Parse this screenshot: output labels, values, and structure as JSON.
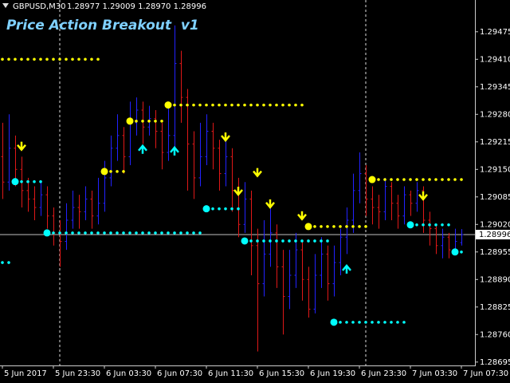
{
  "chart_data": {
    "type": "ohlc",
    "title": "Price Action Breakout  v1",
    "symbol": "GBPUSD,M30",
    "quote": "1.28977 1.29009 1.28970 1.28996",
    "last_price": 1.28996,
    "up_color": "#2222ff",
    "down_color": "#e01818",
    "categories": [
      "5 Jun 2017",
      null,
      null,
      null,
      null,
      null,
      null,
      null,
      "5 Jun 23:30",
      null,
      null,
      null,
      null,
      null,
      null,
      null,
      "6 Jun 03:30",
      null,
      null,
      null,
      null,
      null,
      null,
      null,
      "6 Jun 07:30",
      null,
      null,
      null,
      null,
      null,
      null,
      null,
      "6 Jun 11:30",
      null,
      null,
      null,
      null,
      null,
      null,
      null,
      "6 Jun 15:30",
      null,
      null,
      null,
      null,
      null,
      null,
      null,
      "6 Jun 19:30",
      null,
      null,
      null,
      null,
      null,
      null,
      null,
      "6 Jun 23:30",
      null,
      null,
      null,
      null,
      null,
      null,
      null,
      "7 Jun 03:30",
      null,
      null,
      null,
      null,
      null,
      null,
      null,
      "7 Jun 07:30"
    ],
    "ohlc": [
      [
        1.2918,
        1.2926,
        1.2908,
        1.2912
      ],
      [
        1.2912,
        1.2928,
        1.291,
        1.292
      ],
      [
        1.292,
        1.2923,
        1.2911,
        1.2915
      ],
      [
        1.2915,
        1.2918,
        1.2906,
        1.291
      ],
      [
        1.291,
        1.2913,
        1.2905,
        1.2908
      ],
      [
        1.2908,
        1.2911,
        1.2903,
        1.2906
      ],
      [
        1.2906,
        1.2912,
        1.2904,
        1.2909
      ],
      [
        1.2909,
        1.2911,
        1.2901,
        1.2904
      ],
      [
        1.2904,
        1.2906,
        1.2897,
        1.29
      ],
      [
        1.29,
        1.2903,
        1.2892,
        1.2898
      ],
      [
        1.2898,
        1.2907,
        1.2896,
        1.2903
      ],
      [
        1.2903,
        1.291,
        1.2901,
        1.2906
      ],
      [
        1.2906,
        1.2909,
        1.2901,
        1.2905
      ],
      [
        1.2905,
        1.2911,
        1.2903,
        1.2908
      ],
      [
        1.2908,
        1.291,
        1.2901,
        1.2904
      ],
      [
        1.2904,
        1.2913,
        1.2902,
        1.2907
      ],
      [
        1.2907,
        1.2917,
        1.2905,
        1.2913
      ],
      [
        1.2913,
        1.2923,
        1.2911,
        1.292
      ],
      [
        1.292,
        1.2928,
        1.2917,
        1.2923
      ],
      [
        1.2923,
        1.2925,
        1.2914,
        1.2918
      ],
      [
        1.2918,
        1.2931,
        1.2916,
        1.2926
      ],
      [
        1.2926,
        1.2932,
        1.2923,
        1.2929
      ],
      [
        1.2929,
        1.2931,
        1.2921,
        1.2925
      ],
      [
        1.2925,
        1.293,
        1.2923,
        1.2927
      ],
      [
        1.2927,
        1.2929,
        1.292,
        1.2924
      ],
      [
        1.2924,
        1.2926,
        1.2915,
        1.2919
      ],
      [
        1.2919,
        1.293,
        1.2917,
        1.2923
      ],
      [
        1.2923,
        1.2949,
        1.292,
        1.294
      ],
      [
        1.294,
        1.2943,
        1.2926,
        1.2932
      ],
      [
        1.2932,
        1.2934,
        1.291,
        1.2921
      ],
      [
        1.2921,
        1.2924,
        1.2908,
        1.2913
      ],
      [
        1.2913,
        1.2926,
        1.2911,
        1.2918
      ],
      [
        1.2918,
        1.2928,
        1.2916,
        1.2924
      ],
      [
        1.2924,
        1.2926,
        1.2915,
        1.292
      ],
      [
        1.292,
        1.2922,
        1.291,
        1.2914
      ],
      [
        1.2914,
        1.2923,
        1.2911,
        1.2918
      ],
      [
        1.2918,
        1.292,
        1.2905,
        1.291
      ],
      [
        1.291,
        1.2913,
        1.2899,
        1.2902
      ],
      [
        1.2902,
        1.2912,
        1.29,
        1.2908
      ],
      [
        1.2908,
        1.291,
        1.289,
        1.2897
      ],
      [
        1.2897,
        1.2901,
        1.2872,
        1.2888
      ],
      [
        1.2888,
        1.2903,
        1.2885,
        1.2895
      ],
      [
        1.2895,
        1.2906,
        1.2892,
        1.29
      ],
      [
        1.29,
        1.2902,
        1.2887,
        1.2892
      ],
      [
        1.2892,
        1.2896,
        1.2876,
        1.2885
      ],
      [
        1.2885,
        1.2896,
        1.2882,
        1.289
      ],
      [
        1.289,
        1.29,
        1.2887,
        1.2896
      ],
      [
        1.2896,
        1.2898,
        1.2884,
        1.2889
      ],
      [
        1.2889,
        1.2892,
        1.288,
        1.2882
      ],
      [
        1.2882,
        1.2895,
        1.2881,
        1.289
      ],
      [
        1.289,
        1.2899,
        1.2887,
        1.2895
      ],
      [
        1.2895,
        1.2897,
        1.2884,
        1.2888
      ],
      [
        1.2888,
        1.2897,
        1.2885,
        1.2893
      ],
      [
        1.2893,
        1.2901,
        1.289,
        1.2899
      ],
      [
        1.2899,
        1.2906,
        1.2895,
        1.2903
      ],
      [
        1.2903,
        1.2914,
        1.29,
        1.291
      ],
      [
        1.291,
        1.2919,
        1.2907,
        1.2914
      ],
      [
        1.2914,
        1.2916,
        1.2904,
        1.2908
      ],
      [
        1.2908,
        1.2911,
        1.2902,
        1.2906
      ],
      [
        1.2906,
        1.2909,
        1.2901,
        1.2905
      ],
      [
        1.2905,
        1.2913,
        1.2903,
        1.2911
      ],
      [
        1.2911,
        1.2912,
        1.2903,
        1.2907
      ],
      [
        1.2907,
        1.2909,
        1.2901,
        1.2904
      ],
      [
        1.2904,
        1.2911,
        1.2902,
        1.2909
      ],
      [
        1.2909,
        1.291,
        1.2904,
        1.2907
      ],
      [
        1.2907,
        1.2912,
        1.2905,
        1.291
      ],
      [
        1.291,
        1.2911,
        1.29,
        1.2903
      ],
      [
        1.2903,
        1.2905,
        1.2897,
        1.2901
      ],
      [
        1.2901,
        1.2902,
        1.2895,
        1.2897
      ],
      [
        1.2897,
        1.2901,
        1.2894,
        1.2899
      ],
      [
        1.2899,
        1.29,
        1.2894,
        1.2896
      ],
      [
        1.2896,
        1.2901,
        1.2895,
        1.2898
      ],
      [
        1.28977,
        1.29009,
        1.2897,
        1.28996
      ]
    ],
    "series": [
      {
        "color": "#ffff00",
        "values": [
          1.2941,
          1.2941,
          1.2941,
          1.2941,
          1.2941,
          1.2941,
          1.2941,
          1.2941,
          1.2941,
          1.2941,
          1.2941,
          1.2941,
          1.2941,
          1.2941,
          1.2941,
          1.2941,
          1.29145,
          1.29145,
          1.29145,
          1.29145,
          1.29264,
          1.29264,
          1.29264,
          1.29264,
          1.29264,
          1.29264,
          1.29302,
          1.29302,
          1.29302,
          1.29302,
          1.29302,
          1.29302,
          1.29302,
          1.29302,
          1.29302,
          1.29302,
          1.29302,
          1.29302,
          1.29302,
          1.29302,
          1.29302,
          1.29302,
          1.29302,
          1.29302,
          1.29302,
          1.29302,
          1.29302,
          1.29302,
          1.29015,
          1.29015,
          1.29015,
          1.29015,
          1.29015,
          1.29015,
          1.29015,
          1.29015,
          1.29015,
          1.29015,
          1.29126,
          1.29126,
          1.29126,
          1.29126,
          1.29126,
          1.29126,
          1.29126,
          1.29126,
          1.29126,
          1.29126,
          1.29126,
          1.29126,
          1.29126,
          1.29126,
          1.29126
        ]
      },
      {
        "color": "#00ffff",
        "values": [
          1.2893,
          1.2893,
          1.29121,
          1.29121,
          1.29121,
          1.29121,
          1.29121,
          1.29,
          1.29,
          1.29,
          1.29,
          1.29,
          1.29,
          1.29,
          1.29,
          1.29,
          1.29,
          1.29,
          1.29,
          1.29,
          1.29,
          1.29,
          1.29,
          1.29,
          1.29,
          1.29,
          1.29,
          1.29,
          1.29,
          1.29,
          1.29,
          1.29,
          1.29057,
          1.29057,
          1.29057,
          1.29057,
          1.29057,
          1.29057,
          1.28981,
          1.28981,
          1.28981,
          1.28981,
          1.28981,
          1.28981,
          1.28981,
          1.28981,
          1.28981,
          1.28981,
          1.28981,
          1.28981,
          1.28981,
          1.28981,
          1.28789,
          1.28789,
          1.28789,
          1.28789,
          1.28789,
          1.28789,
          1.28789,
          1.28789,
          1.28789,
          1.28789,
          1.28789,
          1.28789,
          1.29019,
          1.29019,
          1.29019,
          1.29019,
          1.29019,
          1.29019,
          1.29019,
          1.28955,
          1.28955
        ]
      }
    ],
    "signals": [
      {
        "color": "#ffff00",
        "direction": "down",
        "values": [
          null,
          null,
          null,
          1.29202,
          null,
          null,
          null,
          null,
          null,
          null,
          null,
          null,
          null,
          null,
          null,
          null,
          null,
          null,
          null,
          null,
          null,
          null,
          null,
          null,
          null,
          null,
          null,
          null,
          null,
          null,
          null,
          null,
          null,
          null,
          null,
          1.29224,
          null,
          1.29096,
          null,
          null,
          1.2914,
          null,
          1.29066,
          null,
          null,
          null,
          null,
          1.29038,
          null,
          null,
          null,
          null,
          null,
          null,
          null,
          null,
          null,
          null,
          null,
          null,
          null,
          null,
          null,
          null,
          null,
          null,
          1.29085,
          null,
          null,
          null,
          null,
          null,
          null
        ]
      },
      {
        "color": "#00ffff",
        "direction": "up",
        "values": [
          null,
          null,
          null,
          null,
          null,
          null,
          null,
          null,
          null,
          null,
          null,
          null,
          null,
          null,
          null,
          null,
          null,
          null,
          null,
          null,
          null,
          null,
          1.292,
          null,
          null,
          null,
          null,
          1.29196,
          null,
          null,
          null,
          null,
          null,
          null,
          null,
          null,
          null,
          null,
          null,
          null,
          null,
          null,
          null,
          null,
          null,
          null,
          null,
          null,
          null,
          null,
          null,
          null,
          null,
          null,
          1.28917,
          null,
          null,
          null,
          null,
          null,
          null,
          null,
          null,
          null,
          null,
          null,
          null,
          null,
          null,
          null,
          null,
          null,
          null,
          null,
          null
        ]
      }
    ],
    "ylim": [
      1.28687,
      1.2955
    ],
    "yticks": [
      1.29475,
      {
        "value": 1.2941,
        "label": "1.29410"
      },
      1.29345,
      {
        "value": 1.2928,
        "label": "1.29280"
      },
      1.29215,
      {
        "value": 1.2915,
        "label": "1.29150"
      },
      1.29085,
      {
        "value": 1.2902,
        "label": "1.29020"
      },
      1.28955,
      {
        "value": 1.2889,
        "label": "1.28890"
      },
      1.28825,
      {
        "value": 1.2876,
        "label": "1.28760"
      },
      1.28695
    ]
  }
}
